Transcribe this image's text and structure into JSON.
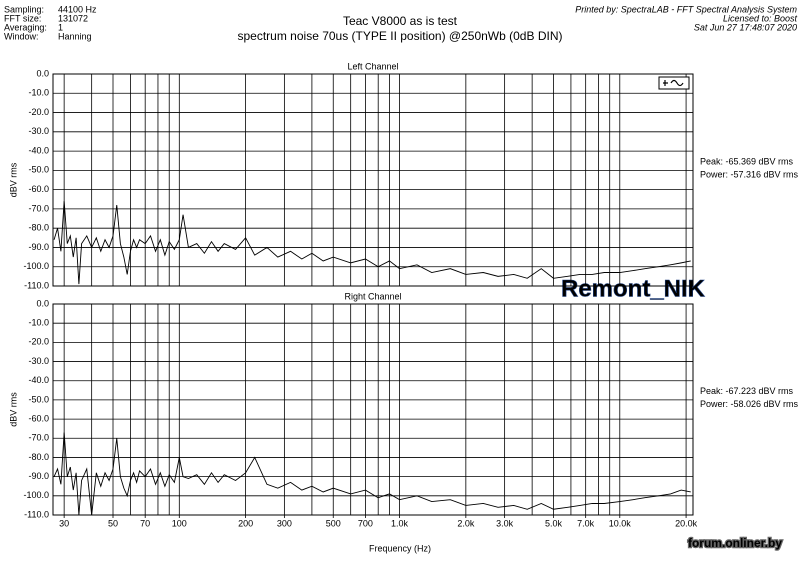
{
  "header": {
    "info": [
      [
        "Sampling:",
        "44100 Hz"
      ],
      [
        "FFT size:",
        "131072"
      ],
      [
        "Averaging:",
        "1"
      ],
      [
        "Window:",
        "Hanning"
      ]
    ],
    "title": "Teac V8000 as is test",
    "subtitle": "spectrum noise 70us (TYPE II position) @250nWb (0dB DIN)",
    "printed_by": "Printed by: SpectraLAB - FFT Spectral Analysis System",
    "license": "Licensed to: Boost",
    "timestamp": "Sat Jun 27 17:48:07 2020",
    "x_label": "Frequency (Hz)",
    "watermark": "Remont_NIK",
    "site": "forum.onliner.by"
  },
  "chart_data": [
    {
      "type": "line",
      "title": "Left Channel",
      "y_label": "dBV rms",
      "log_x": true,
      "grid": true,
      "annotations": [
        "Peak: -65.369 dBV rms",
        "Power: -57.316 dBV rms"
      ],
      "xlim": [
        26.7,
        21500
      ],
      "ylim": [
        -110,
        0
      ],
      "xgrid": [
        30,
        40,
        50,
        60,
        70,
        80,
        90,
        100,
        200,
        300,
        400,
        500,
        600,
        700,
        800,
        900,
        1000,
        2000,
        3000,
        4000,
        5000,
        6000,
        7000,
        8000,
        9000,
        10000,
        20000
      ],
      "yticks": [
        {
          "value": 0,
          "label": "0.0"
        },
        {
          "value": -10,
          "label": "-10.0"
        },
        {
          "value": -20,
          "label": "-20.0"
        },
        {
          "value": -30,
          "label": "-30.0"
        },
        {
          "value": -40,
          "label": "-40.0"
        },
        {
          "value": -50,
          "label": "-50.0"
        },
        {
          "value": -60,
          "label": "-60.0"
        },
        {
          "value": -70,
          "label": "-70.0"
        },
        {
          "value": -80,
          "label": "-80.0"
        },
        {
          "value": -90,
          "label": "-90.0"
        },
        {
          "value": -100,
          "label": "-100.0"
        },
        {
          "value": -110,
          "label": "-110.0"
        }
      ],
      "x": [
        27,
        28,
        29,
        30,
        31,
        32,
        33,
        34,
        35,
        36,
        38,
        40,
        42,
        44,
        46,
        48,
        50,
        52,
        54,
        56,
        58,
        60,
        62,
        64,
        66,
        70,
        74,
        78,
        82,
        86,
        90,
        95,
        100,
        104,
        110,
        120,
        130,
        140,
        150,
        160,
        180,
        200,
        220,
        250,
        280,
        320,
        360,
        400,
        450,
        500,
        600,
        700,
        800,
        900,
        1000,
        1200,
        1400,
        1700,
        2000,
        2400,
        2800,
        3300,
        3800,
        4400,
        5000,
        5800,
        6600,
        7500,
        8500,
        10000,
        11500,
        13000,
        15000,
        17000,
        19000,
        21000
      ],
      "series": [
        {
          "color": "#000000",
          "values": [
            -86,
            -80,
            -92,
            -66,
            -88,
            -84,
            -95,
            -85,
            -109,
            -88,
            -84,
            -90,
            -85,
            -92,
            -86,
            -90,
            -84,
            -68,
            -88,
            -95,
            -104,
            -92,
            -86,
            -90,
            -86,
            -88,
            -84,
            -92,
            -86,
            -94,
            -87,
            -91,
            -86,
            -73,
            -90,
            -88,
            -93,
            -87,
            -92,
            -88,
            -91,
            -85,
            -94,
            -90,
            -95,
            -92,
            -96,
            -93,
            -97,
            -95,
            -98,
            -96,
            -100,
            -97,
            -101,
            -99,
            -103,
            -101,
            -104,
            -103,
            -105,
            -104,
            -106,
            -101,
            -106,
            -105,
            -104,
            -104,
            -103,
            -103,
            -102,
            -101,
            -100,
            -99,
            -98,
            -97
          ]
        }
      ]
    },
    {
      "type": "line",
      "title": "Right Channel",
      "y_label": "dBV rms",
      "log_x": true,
      "grid": true,
      "annotations": [
        "Peak: -67.223 dBV rms",
        "Power: -58.026 dBV rms"
      ],
      "xlim": [
        26.7,
        21500
      ],
      "ylim": [
        -110,
        0
      ],
      "xgrid": [
        40,
        60,
        80,
        90,
        400,
        600,
        800,
        900,
        4000,
        6000,
        8000,
        9000
      ],
      "xticks": [
        {
          "value": 30,
          "label": "30"
        },
        {
          "value": 50,
          "label": "50"
        },
        {
          "value": 70,
          "label": "70"
        },
        {
          "value": 100,
          "label": "100"
        },
        {
          "value": 200,
          "label": "200"
        },
        {
          "value": 300,
          "label": "300"
        },
        {
          "value": 500,
          "label": "500"
        },
        {
          "value": 700,
          "label": "700"
        },
        {
          "value": 1000,
          "label": "1.0k"
        },
        {
          "value": 2000,
          "label": "2.0k"
        },
        {
          "value": 3000,
          "label": "3.0k"
        },
        {
          "value": 5000,
          "label": "5.0k"
        },
        {
          "value": 7000,
          "label": "7.0k"
        },
        {
          "value": 10000,
          "label": "10.0k"
        },
        {
          "value": 20000,
          "label": "20.0k"
        }
      ],
      "yticks": [
        {
          "value": 0,
          "label": "0.0"
        },
        {
          "value": -10,
          "label": "-10.0"
        },
        {
          "value": -20,
          "label": "-20.0"
        },
        {
          "value": -30,
          "label": "-30.0"
        },
        {
          "value": -40,
          "label": "-40.0"
        },
        {
          "value": -50,
          "label": "-50.0"
        },
        {
          "value": -60,
          "label": "-60.0"
        },
        {
          "value": -70,
          "label": "-70.0"
        },
        {
          "value": -80,
          "label": "-80.0"
        },
        {
          "value": -90,
          "label": "-90.0"
        },
        {
          "value": -100,
          "label": "-100.0"
        },
        {
          "value": -110,
          "label": "-110.0"
        }
      ],
      "x": [
        27,
        28,
        29,
        30,
        31,
        32,
        33,
        34,
        35,
        36,
        38,
        40,
        42,
        44,
        46,
        48,
        50,
        52,
        54,
        56,
        58,
        60,
        62,
        64,
        66,
        70,
        74,
        78,
        82,
        86,
        90,
        95,
        100,
        104,
        110,
        120,
        130,
        140,
        150,
        160,
        180,
        200,
        220,
        250,
        280,
        320,
        360,
        400,
        450,
        500,
        600,
        700,
        800,
        900,
        1000,
        1200,
        1400,
        1700,
        2000,
        2400,
        2800,
        3300,
        3800,
        4400,
        5000,
        5800,
        6600,
        7500,
        8500,
        10000,
        11500,
        13000,
        15000,
        17000,
        19000,
        21000
      ],
      "series": [
        {
          "color": "#000000",
          "values": [
            -90,
            -86,
            -94,
            -67,
            -90,
            -85,
            -97,
            -88,
            -110,
            -92,
            -86,
            -110,
            -88,
            -95,
            -88,
            -92,
            -86,
            -70,
            -90,
            -96,
            -100,
            -92,
            -88,
            -93,
            -87,
            -90,
            -86,
            -94,
            -88,
            -95,
            -89,
            -93,
            -80,
            -90,
            -91,
            -89,
            -94,
            -88,
            -93,
            -89,
            -92,
            -88,
            -80,
            -94,
            -96,
            -93,
            -97,
            -95,
            -98,
            -96,
            -99,
            -97,
            -101,
            -99,
            -102,
            -100,
            -103,
            -102,
            -105,
            -104,
            -106,
            -105,
            -107,
            -104,
            -107,
            -106,
            -105,
            -104,
            -104,
            -103,
            -102,
            -101,
            -100,
            -99,
            -97,
            -98
          ]
        }
      ]
    }
  ]
}
